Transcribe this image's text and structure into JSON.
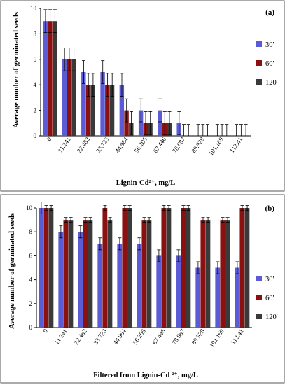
{
  "colors": {
    "30": "#5b5bd6",
    "60": "#8b1010",
    "120": "#3a3a3a",
    "errorbar": "#000000",
    "frame": "#555555"
  },
  "chart_data": [
    {
      "type": "bar",
      "tag": "(a)",
      "xlabel": "Lignin-Cd²⁺, mg/L",
      "ylabel": "Average number of germinated seeds",
      "ylim": [
        0,
        10
      ],
      "yticks": [
        0,
        2,
        4,
        6,
        8,
        10
      ],
      "grid": false,
      "legend_position": "right",
      "categories": [
        "0",
        "11.241",
        "22.482",
        "33.723",
        "44.964",
        "56.205",
        "67.446",
        "78.687",
        "89.928",
        "101.169",
        "112.41"
      ],
      "series": [
        {
          "name": "30'",
          "color_key": "30",
          "values": [
            9,
            6,
            5,
            5,
            4,
            2,
            2,
            1,
            0,
            0,
            0
          ],
          "errors": [
            0.9,
            0.9,
            0.9,
            0.9,
            0.9,
            0.9,
            0.9,
            0.9,
            0.9,
            0.9,
            0.9
          ]
        },
        {
          "name": "60'",
          "color_key": "60",
          "values": [
            9,
            6,
            4,
            4,
            2,
            1,
            1,
            0,
            0,
            0,
            0
          ],
          "errors": [
            0.9,
            0.9,
            0.9,
            0.9,
            0.9,
            0.9,
            0.9,
            0.9,
            0.9,
            0.9,
            0.9
          ]
        },
        {
          "name": "120'",
          "color_key": "120",
          "values": [
            9,
            6,
            4,
            4,
            1,
            1,
            1,
            0,
            0,
            0,
            0
          ],
          "errors": [
            0.9,
            0.9,
            0.9,
            0.9,
            0.9,
            0.9,
            0.9,
            0.9,
            0.9,
            0.9,
            0.9
          ]
        }
      ]
    },
    {
      "type": "bar",
      "tag": "(b)",
      "xlabel": "Filtered from Lignin-Cd ²⁺, mg/L",
      "ylabel": "Average number of germinated seeds",
      "ylim": [
        0,
        10
      ],
      "yticks": [
        0,
        2,
        4,
        6,
        8,
        10
      ],
      "grid": false,
      "legend_position": "right",
      "categories": [
        "0",
        "11.241",
        "22.482",
        "33.723",
        "44.964",
        "56.205",
        "67.446",
        "78.687",
        "89.928",
        "101.169",
        "112.41"
      ],
      "series": [
        {
          "name": "30'",
          "color_key": "30",
          "values": [
            10,
            8,
            8,
            7,
            7,
            7,
            6,
            6,
            5,
            5,
            5
          ],
          "errors": [
            0.5,
            0.5,
            0.5,
            0.5,
            0.5,
            0.5,
            0.5,
            0.5,
            0.5,
            0.5,
            0.5
          ]
        },
        {
          "name": "60'",
          "color_key": "60",
          "values": [
            10,
            9,
            9,
            10,
            10,
            9,
            10,
            10,
            9,
            9,
            10
          ],
          "errors": [
            0.2,
            0.2,
            0.2,
            0.2,
            0.2,
            0.2,
            0.2,
            0.2,
            0.2,
            0.2,
            0.2
          ]
        },
        {
          "name": "120'",
          "color_key": "120",
          "values": [
            10,
            9,
            9,
            9,
            10,
            9,
            10,
            10,
            9,
            9,
            10
          ],
          "errors": [
            0.2,
            0.2,
            0.2,
            0.2,
            0.2,
            0.2,
            0.2,
            0.2,
            0.2,
            0.2,
            0.2
          ]
        }
      ]
    }
  ]
}
